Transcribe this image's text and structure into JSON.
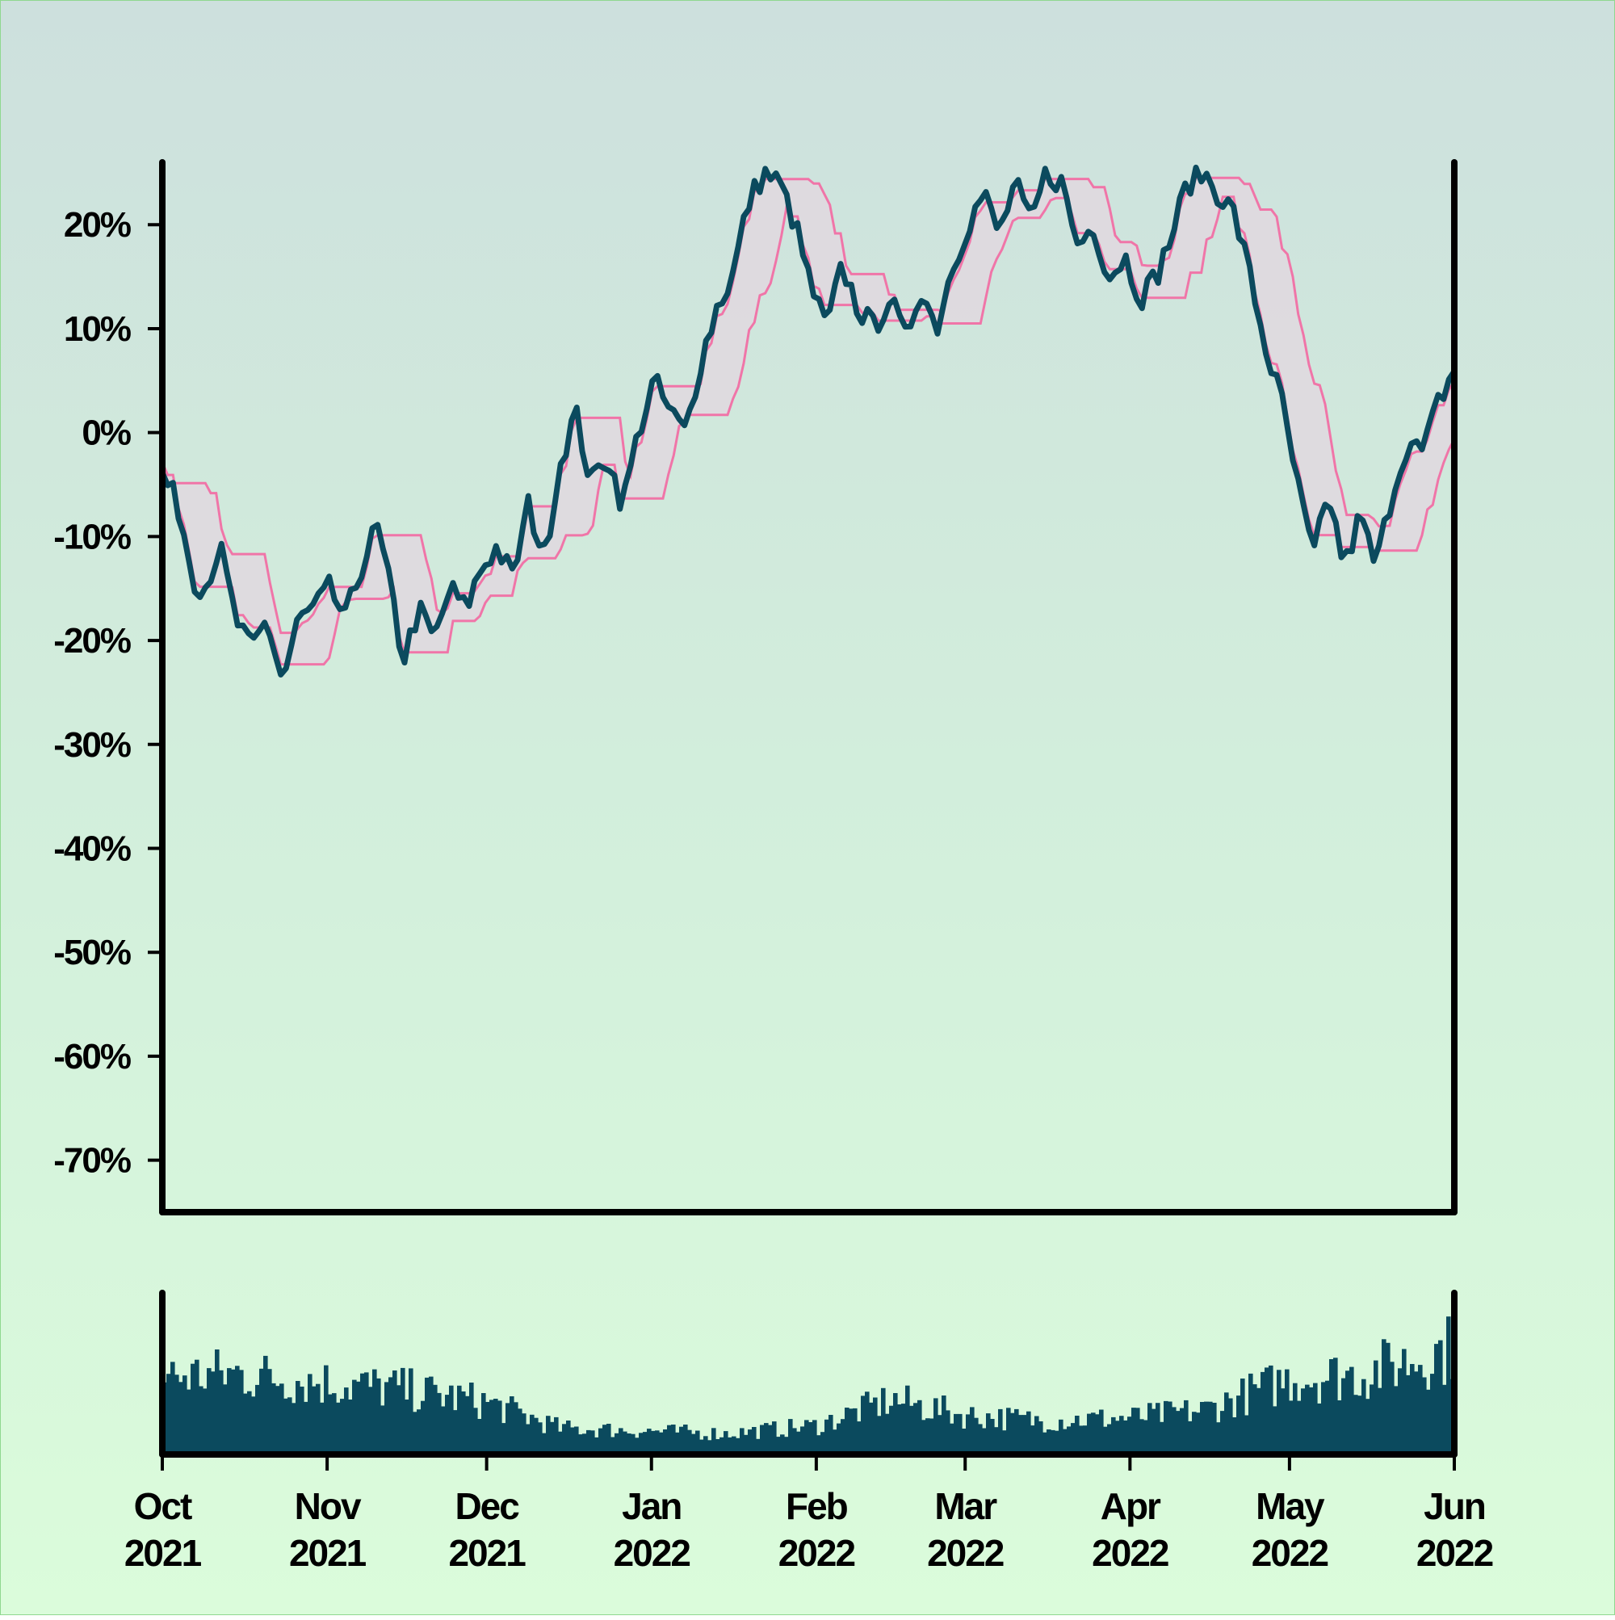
{
  "colors": {
    "price": "#0b4a5e",
    "band": "#f075a8",
    "band_fill": "#e0d8df",
    "volume": "#0b4a5e",
    "axis": "#000000"
  },
  "chart_data": [
    {
      "type": "line",
      "title": "",
      "xlabel": "",
      "ylabel": "",
      "x_range": [
        "2021-10-01",
        "2022-06-01"
      ],
      "ylim": [
        -0.75,
        0.26
      ],
      "grid": false,
      "legend": "none",
      "y_ticks": [
        {
          "value": 0.2,
          "label": "20%"
        },
        {
          "value": 0.1,
          "label": "10%"
        },
        {
          "value": 0.0,
          "label": "0%"
        },
        {
          "value": -0.1,
          "label": "-10%"
        },
        {
          "value": -0.2,
          "label": "-20%"
        },
        {
          "value": -0.3,
          "label": "-30%"
        },
        {
          "value": -0.4,
          "label": "-40%"
        },
        {
          "value": -0.5,
          "label": "-50%"
        },
        {
          "value": -0.6,
          "label": "-60%"
        },
        {
          "value": -0.7,
          "label": "-70%"
        }
      ],
      "series": [
        {
          "role": "price",
          "points": [
            [
              "2021-10-01",
              -0.04
            ],
            [
              "2021-10-04",
              -0.07
            ],
            [
              "2021-10-07",
              -0.14
            ],
            [
              "2021-10-09",
              -0.15
            ],
            [
              "2021-10-12",
              -0.11
            ],
            [
              "2021-10-15",
              -0.18
            ],
            [
              "2021-10-18",
              -0.21
            ],
            [
              "2021-10-21",
              -0.18
            ],
            [
              "2021-10-24",
              -0.24
            ],
            [
              "2021-10-27",
              -0.18
            ],
            [
              "2021-10-30",
              -0.17
            ],
            [
              "2021-11-02",
              -0.15
            ],
            [
              "2021-11-05",
              -0.18
            ],
            [
              "2021-11-08",
              -0.13
            ],
            [
              "2021-11-11",
              -0.09
            ],
            [
              "2021-11-14",
              -0.16
            ],
            [
              "2021-11-16",
              -0.22
            ],
            [
              "2021-11-19",
              -0.17
            ],
            [
              "2021-11-22",
              -0.2
            ],
            [
              "2021-11-25",
              -0.15
            ],
            [
              "2021-11-28",
              -0.17
            ],
            [
              "2021-12-01",
              -0.13
            ],
            [
              "2021-12-04",
              -0.11
            ],
            [
              "2021-12-07",
              -0.14
            ],
            [
              "2021-12-10",
              -0.07
            ],
            [
              "2021-12-13",
              -0.12
            ],
            [
              "2021-12-16",
              -0.03
            ],
            [
              "2021-12-19",
              0.02
            ],
            [
              "2021-12-22",
              -0.05
            ],
            [
              "2021-12-25",
              -0.02
            ],
            [
              "2021-12-28",
              -0.07
            ],
            [
              "2021-12-31",
              0.0
            ],
            [
              "2022-01-03",
              0.05
            ],
            [
              "2022-01-06",
              0.02
            ],
            [
              "2022-01-09",
              0.0
            ],
            [
              "2022-01-12",
              0.07
            ],
            [
              "2022-01-15",
              0.12
            ],
            [
              "2022-01-18",
              0.15
            ],
            [
              "2022-01-21",
              0.22
            ],
            [
              "2022-01-24",
              0.25
            ],
            [
              "2022-01-27",
              0.24
            ],
            [
              "2022-01-30",
              0.2
            ],
            [
              "2022-02-02",
              0.14
            ],
            [
              "2022-02-05",
              0.1
            ],
            [
              "2022-02-08",
              0.16
            ],
            [
              "2022-02-11",
              0.12
            ],
            [
              "2022-02-14",
              0.1
            ],
            [
              "2022-02-17",
              0.13
            ],
            [
              "2022-02-20",
              0.09
            ],
            [
              "2022-02-23",
              0.14
            ],
            [
              "2022-02-26",
              0.1
            ],
            [
              "2022-03-01",
              0.16
            ],
            [
              "2022-03-04",
              0.2
            ],
            [
              "2022-03-07",
              0.23
            ],
            [
              "2022-03-10",
              0.19
            ],
            [
              "2022-03-13",
              0.24
            ],
            [
              "2022-03-16",
              0.2
            ],
            [
              "2022-03-19",
              0.25
            ],
            [
              "2022-03-22",
              0.24
            ],
            [
              "2022-03-25",
              0.18
            ],
            [
              "2022-03-28",
              0.2
            ],
            [
              "2022-03-31",
              0.15
            ],
            [
              "2022-04-03",
              0.17
            ],
            [
              "2022-04-06",
              0.13
            ],
            [
              "2022-04-09",
              0.15
            ],
            [
              "2022-04-12",
              0.19
            ],
            [
              "2022-04-15",
              0.24
            ],
            [
              "2022-04-18",
              0.25
            ],
            [
              "2022-04-21",
              0.23
            ],
            [
              "2022-04-24",
              0.21
            ],
            [
              "2022-04-27",
              0.15
            ],
            [
              "2022-04-30",
              0.08
            ],
            [
              "2022-05-03",
              0.03
            ],
            [
              "2022-05-06",
              -0.05
            ],
            [
              "2022-05-09",
              -0.12
            ],
            [
              "2022-05-12",
              -0.06
            ],
            [
              "2022-05-15",
              -0.13
            ],
            [
              "2022-05-18",
              -0.08
            ],
            [
              "2022-05-21",
              -0.13
            ],
            [
              "2022-05-24",
              -0.06
            ],
            [
              "2022-05-27",
              -0.01
            ],
            [
              "2022-05-30",
              -0.02
            ],
            [
              "2022-06-02",
              0.03
            ],
            [
              "2022-06-05",
              0.06
            ]
          ]
        }
      ]
    },
    {
      "type": "bar",
      "title": "",
      "role": "volume",
      "x_range": [
        "2021-10-01",
        "2022-06-01"
      ],
      "x_ticks": [
        {
          "date": "2021-10-01",
          "label": [
            "Oct",
            "2021"
          ]
        },
        {
          "date": "2021-11-01",
          "label": [
            "Nov",
            "2021"
          ]
        },
        {
          "date": "2021-12-01",
          "label": [
            "Dec",
            "2021"
          ]
        },
        {
          "date": "2022-01-01",
          "label": [
            "Jan",
            "2022"
          ]
        },
        {
          "date": "2022-02-01",
          "label": [
            "Feb",
            "2022"
          ]
        },
        {
          "date": "2022-03-01",
          "label": [
            "Mar",
            "2022"
          ]
        },
        {
          "date": "2022-04-01",
          "label": [
            "Apr",
            "2022"
          ]
        },
        {
          "date": "2022-05-01",
          "label": [
            "May",
            "2022"
          ]
        },
        {
          "date": "2022-06-01",
          "label": [
            "Jun",
            "2022"
          ]
        }
      ],
      "envelope": [
        [
          "2021-10-01",
          0.6
        ],
        [
          "2021-10-15",
          0.62
        ],
        [
          "2021-11-01",
          0.55
        ],
        [
          "2021-11-15",
          0.5
        ],
        [
          "2021-12-01",
          0.4
        ],
        [
          "2021-12-15",
          0.2
        ],
        [
          "2022-01-01",
          0.18
        ],
        [
          "2022-01-15",
          0.16
        ],
        [
          "2022-02-01",
          0.22
        ],
        [
          "2022-02-15",
          0.42
        ],
        [
          "2022-03-01",
          0.3
        ],
        [
          "2022-03-15",
          0.26
        ],
        [
          "2022-04-01",
          0.28
        ],
        [
          "2022-04-15",
          0.34
        ],
        [
          "2022-05-01",
          0.58
        ],
        [
          "2022-05-15",
          0.62
        ],
        [
          "2022-06-01",
          0.82
        ]
      ]
    }
  ]
}
